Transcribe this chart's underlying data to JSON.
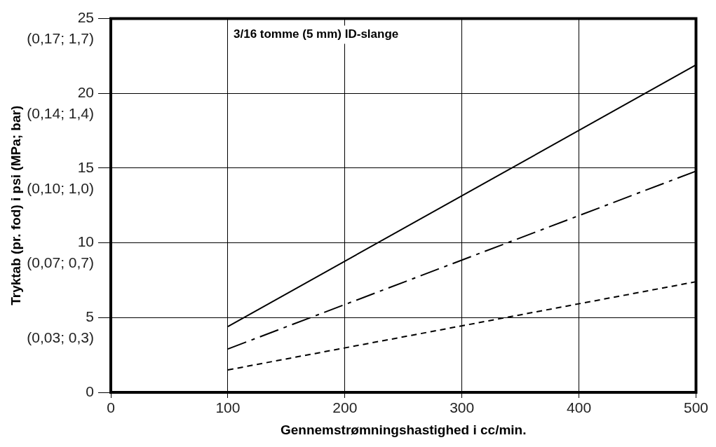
{
  "chart_data": {
    "type": "line",
    "title": "3/16 tomme (5 mm) ID-slange",
    "xlabel": "Gennemstrømningshastighed i cc/min.",
    "ylabel": "Tryktab (pr. fod) i psi (MPa; bar)",
    "x": [
      100,
      500
    ],
    "series": [
      {
        "color": "#000000",
        "line_style": "solid",
        "values": [
          4.4,
          21.9
        ]
      },
      {
        "color": "#000000",
        "line_style": "dashdot",
        "values": [
          2.9,
          14.8
        ]
      },
      {
        "color": "#000000",
        "line_style": "dashed",
        "values": [
          1.5,
          7.4
        ]
      }
    ],
    "xlim": [
      0,
      500
    ],
    "xticks": [
      0,
      100,
      200,
      300,
      400,
      500
    ],
    "ylim": [
      0,
      25
    ],
    "yticks": [
      0,
      5,
      10,
      15,
      20,
      25
    ],
    "annotations": [
      "(0,03; 0,3)",
      "(0,07; 0,7)",
      "(0,10; 1,0)",
      "(0,14; 1,4)",
      "(0,17; 1,7)"
    ],
    "grid": true,
    "legend": false,
    "marker": "none"
  }
}
